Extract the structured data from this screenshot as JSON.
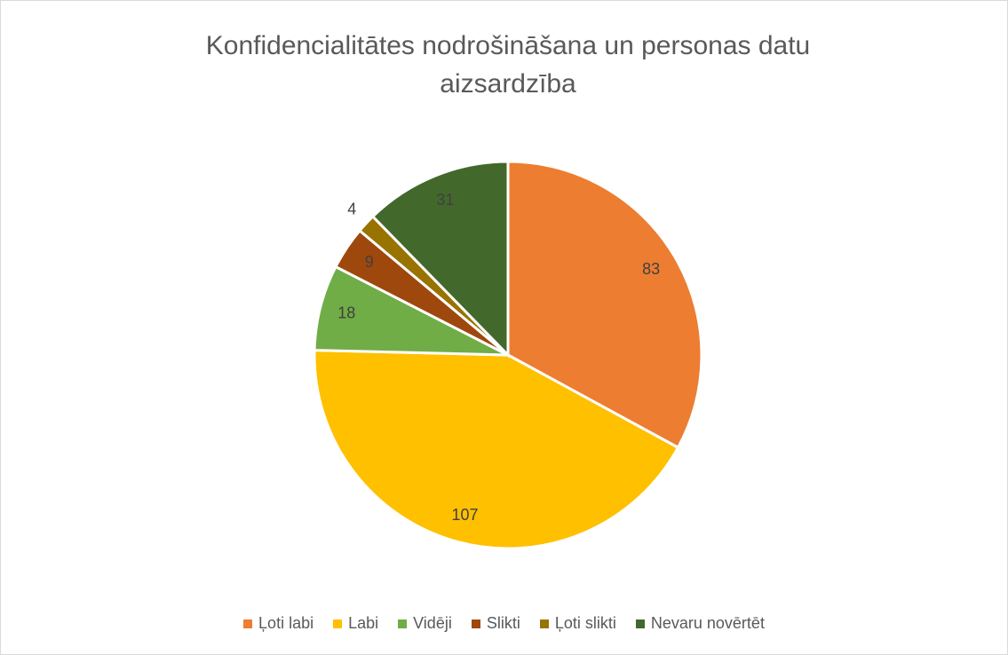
{
  "chart_data": {
    "type": "pie",
    "title": "Konfidencialitātes nodrošināšana un personas datu aizsardzība",
    "categories": [
      "Ļoti labi",
      "Labi",
      "Vidēji",
      "Slikti",
      "Ļoti slikti",
      "Nevaru novērtēt"
    ],
    "values": [
      83,
      107,
      18,
      9,
      4,
      31
    ],
    "colors": [
      "#ED7D31",
      "#FFC000",
      "#70AD47",
      "#9E480E",
      "#997300",
      "#43682B"
    ],
    "legend": "bottom"
  }
}
